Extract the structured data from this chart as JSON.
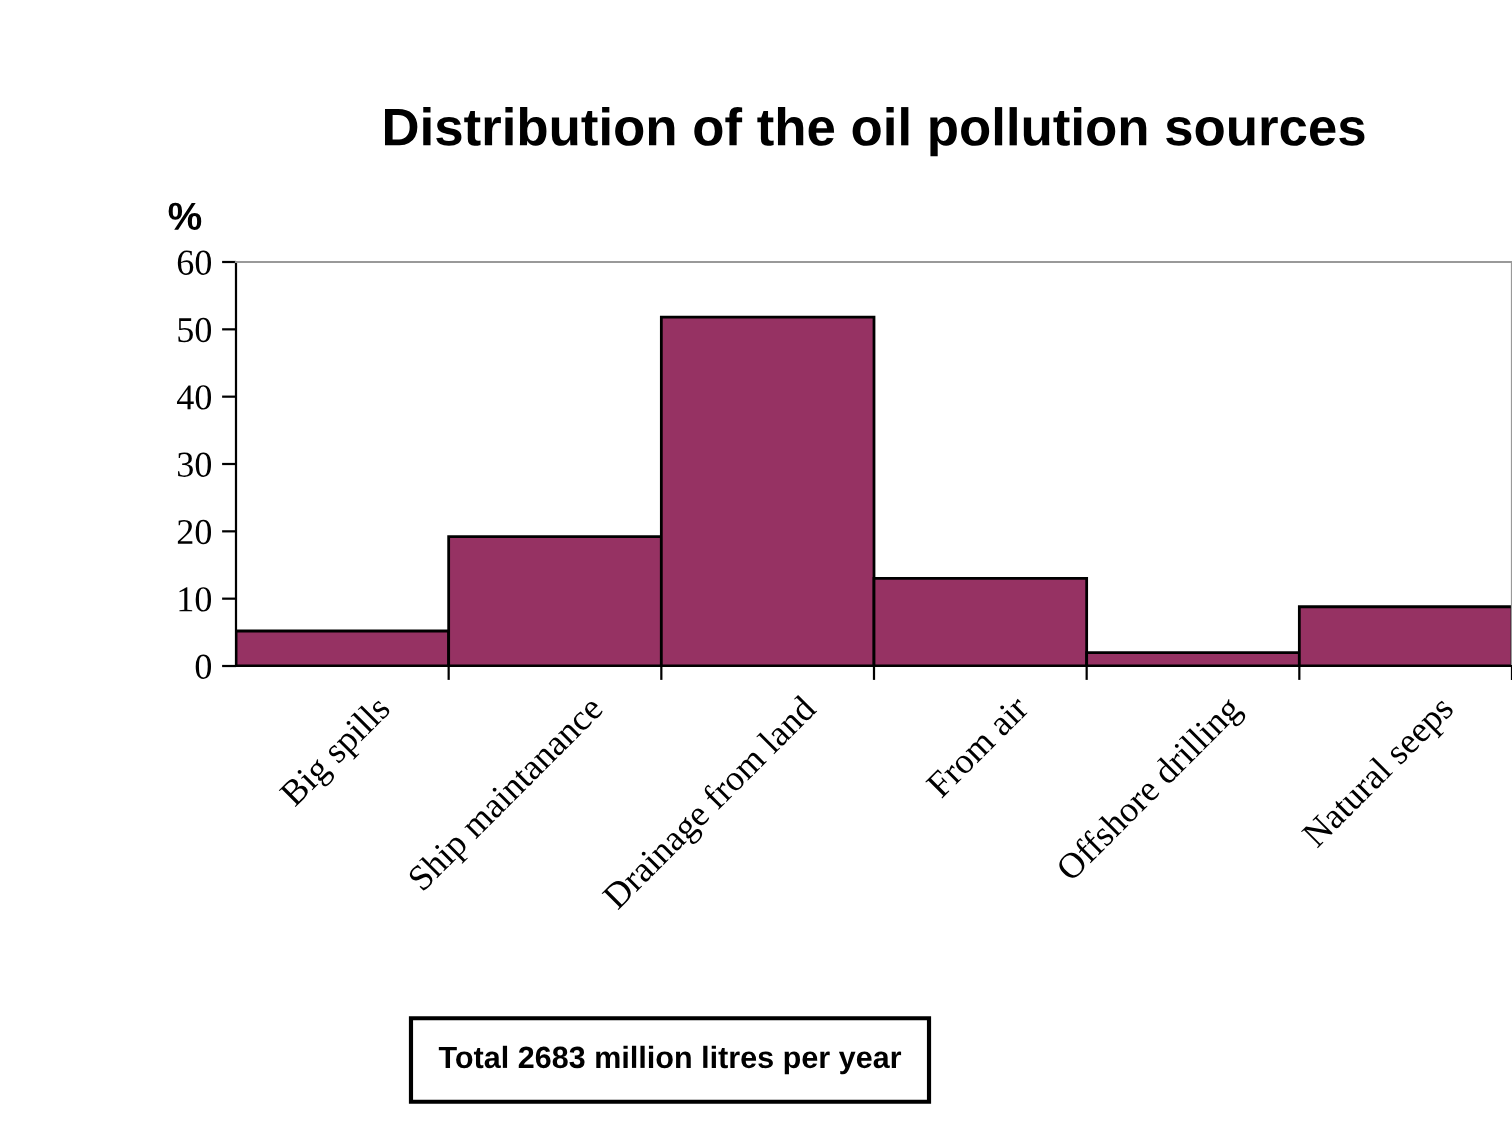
{
  "chart_data": {
    "type": "bar",
    "title": "Distribution of the oil pollution sources",
    "ylabel": "%",
    "categories": [
      "Big spills",
      "Ship maintanance",
      "Drainage from land",
      "From air",
      "Offshore drilling",
      "Natural seeps"
    ],
    "values": [
      5.2,
      19.2,
      51.8,
      13.0,
      2.0,
      8.8
    ],
    "color": "#963263",
    "ylim": [
      0,
      60
    ],
    "yticks": [
      0,
      10,
      20,
      30,
      40,
      50,
      60
    ],
    "grid": false,
    "legend": false,
    "annotations": [
      "Total 2683 million litres per year"
    ]
  }
}
